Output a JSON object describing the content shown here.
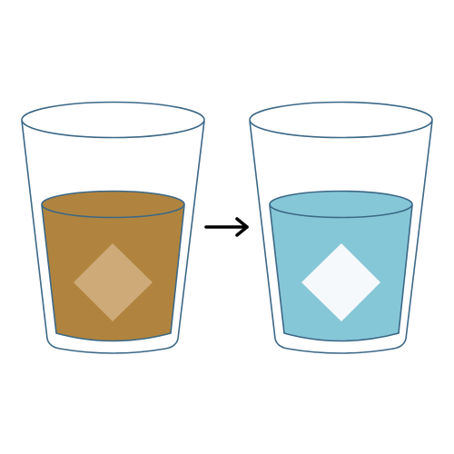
{
  "diagram": {
    "description_label": "",
    "colors": {
      "glass_outline": "#3b6886",
      "background": "#ffffff",
      "left_liquid": "#b0843e",
      "left_cube": "#ceaa78",
      "right_liquid": "#86c7d7",
      "right_cube": "#f5f9fb",
      "arrow": "#000000"
    },
    "glasses": [
      {
        "name": "left-glass",
        "state": "brown liquid with ice cube"
      },
      {
        "name": "right-glass",
        "state": "blue liquid with ice cube"
      }
    ],
    "arrow": {
      "direction": "right"
    }
  }
}
